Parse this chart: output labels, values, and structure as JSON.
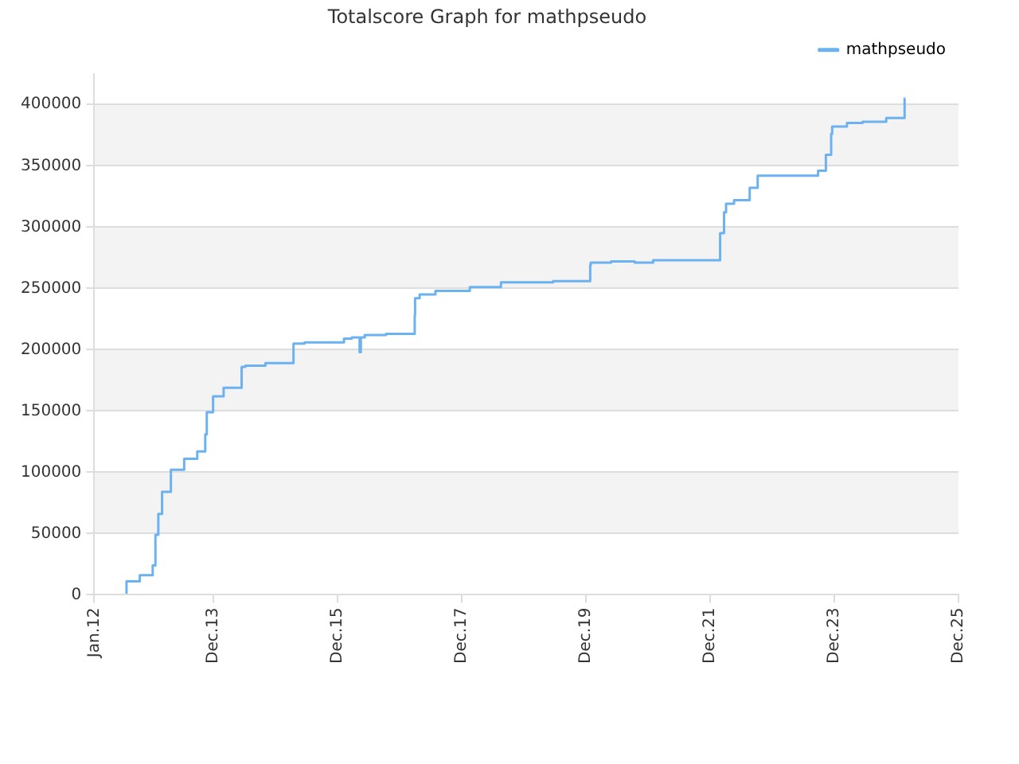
{
  "chart_data": {
    "type": "step",
    "title": "Totalscore Graph for mathpseudo",
    "x": [
      "2012-07-09",
      "2012-09-25",
      "2012-12-10",
      "2012-12-26",
      "2013-01-12",
      "2013-02-03",
      "2013-03-27",
      "2013-06-13",
      "2013-08-29",
      "2013-10-15",
      "2013-10-24",
      "2013-11-30",
      "2014-01-31",
      "2014-02-15",
      "2014-05-17",
      "2014-06-08",
      "2014-10-04",
      "2015-03-18",
      "2015-05-22",
      "2016-01-09",
      "2016-02-24",
      "2016-04-10",
      "2016-04-17",
      "2016-05-10",
      "2016-09-12",
      "2017-02-28",
      "2017-03-02",
      "2017-03-29",
      "2017-06-30",
      "2018-01-18",
      "2018-07-20",
      "2019-05-23",
      "2019-12-27",
      "2019-12-30",
      "2020-04-28",
      "2020-09-14",
      "2020-12-31",
      "2021-05-02",
      "2022-01-29",
      "2022-02-21",
      "2022-03-05",
      "2022-04-21",
      "2022-07-22",
      "2022-09-07",
      "2023-02-09",
      "2023-08-28",
      "2023-10-13",
      "2023-11-13",
      "2023-11-19",
      "2024-02-14",
      "2024-05-16",
      "2024-10-02",
      "2024-10-11",
      "2025-01-18",
      "2025-01-19"
    ],
    "series": [
      {
        "name": "mathpseudo",
        "color": "#6cb2f0",
        "values": [
          1000,
          11000,
          16000,
          24000,
          49000,
          66000,
          84000,
          102000,
          111000,
          117000,
          131000,
          149000,
          162000,
          169000,
          169000,
          186000,
          187000,
          189000,
          205000,
          206000,
          209000,
          210000,
          198000,
          210000,
          212000,
          213000,
          228000,
          242000,
          245000,
          248000,
          251000,
          255000,
          256000,
          269000,
          271000,
          272000,
          271000,
          273000,
          273000,
          295000,
          312000,
          319000,
          322000,
          332000,
          342000,
          342000,
          346000,
          359000,
          376000,
          382000,
          385000,
          386000,
          389000,
          389000,
          405000
        ]
      }
    ],
    "xlim": [
      "2012-01",
      "2025-12"
    ],
    "xticks": [
      {
        "value": "2012-01",
        "label": "Jan.12"
      },
      {
        "value": "2013-12",
        "label": "Dec.13"
      },
      {
        "value": "2015-12",
        "label": "Dec.15"
      },
      {
        "value": "2017-12",
        "label": "Dec.17"
      },
      {
        "value": "2019-12",
        "label": "Dec.19"
      },
      {
        "value": "2021-12",
        "label": "Dec.21"
      },
      {
        "value": "2023-12",
        "label": "Dec.23"
      },
      {
        "value": "2025-12",
        "label": "Dec.25"
      }
    ],
    "ylim": [
      0,
      425000
    ],
    "yticks": [
      0,
      50000,
      100000,
      150000,
      200000,
      250000,
      300000,
      350000,
      400000
    ],
    "grid": "y",
    "legend": "top right",
    "marker": "none",
    "line_style": "solid"
  }
}
